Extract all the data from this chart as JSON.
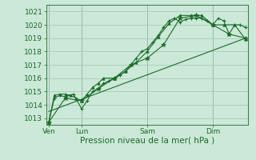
{
  "bg_color": "#cce8d8",
  "grid_color": "#aaccbb",
  "line_color": "#1a6b2a",
  "xlabel": "Pression niveau de la mer( hPa )",
  "xlabel_fontsize": 7.5,
  "tick_fontsize": 6.5,
  "ylim": [
    1012.5,
    1021.5
  ],
  "yticks": [
    1013,
    1014,
    1015,
    1016,
    1017,
    1018,
    1019,
    1020,
    1021
  ],
  "day_positions": [
    0,
    48,
    144,
    240
  ],
  "day_labels": [
    "Ven",
    "Lun",
    "Sam",
    "Dim"
  ],
  "xlim": [
    -4,
    292
  ],
  "series1_x": [
    0,
    8,
    16,
    24,
    36,
    48,
    56,
    64,
    72,
    80,
    88,
    96,
    104,
    112,
    120,
    128,
    136,
    144,
    152,
    160,
    168,
    176,
    184,
    192,
    200,
    208,
    216,
    224,
    232,
    240,
    248,
    256,
    264,
    272,
    280,
    288
  ],
  "series1_y": [
    1012.7,
    1014.5,
    1014.7,
    1014.6,
    1014.8,
    1013.7,
    1014.3,
    1015.0,
    1015.2,
    1015.6,
    1015.8,
    1016.0,
    1016.2,
    1016.5,
    1017.0,
    1017.5,
    1018.0,
    1018.2,
    1018.7,
    1019.2,
    1019.8,
    1020.3,
    1020.5,
    1020.2,
    1020.4,
    1020.5,
    1020.5,
    1020.5,
    1020.3,
    1020.0,
    1020.5,
    1020.3,
    1019.3,
    1020.0,
    1020.0,
    1019.8
  ],
  "series2_x": [
    0,
    8,
    16,
    24,
    32,
    40,
    48,
    56,
    64,
    72,
    80,
    96,
    112,
    128,
    144,
    160,
    176,
    192,
    208,
    224,
    240,
    256,
    272,
    288
  ],
  "series2_y": [
    1012.7,
    1014.7,
    1014.8,
    1014.8,
    1014.7,
    1014.5,
    1014.3,
    1014.8,
    1015.3,
    1015.6,
    1016.0,
    1016.0,
    1016.5,
    1017.2,
    1018.0,
    1019.1,
    1020.1,
    1020.7,
    1020.7,
    1020.7,
    1020.0,
    1020.0,
    1020.0,
    1018.9
  ],
  "series3_x": [
    0,
    24,
    48,
    72,
    96,
    120,
    144,
    168,
    192,
    216,
    240,
    264,
    288
  ],
  "series3_y": [
    1012.7,
    1014.5,
    1014.3,
    1015.2,
    1016.0,
    1017.0,
    1017.5,
    1018.5,
    1020.5,
    1020.7,
    1020.0,
    1019.3,
    1019.0
  ],
  "trend_x": [
    0,
    288
  ],
  "trend_y": [
    1013.5,
    1019.0
  ]
}
